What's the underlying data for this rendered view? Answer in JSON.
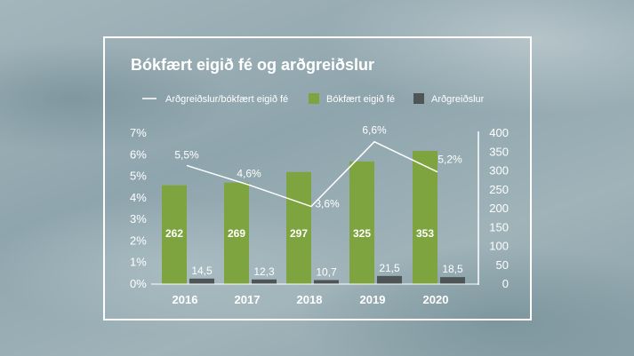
{
  "chart_data": {
    "type": "bar",
    "title": "Bókfært eigið fé og arðgreiðslur",
    "categories": [
      "2016",
      "2017",
      "2018",
      "2019",
      "2020"
    ],
    "series": [
      {
        "name": "Bókfært eigið fé",
        "axis": "right",
        "values": [
          262,
          269,
          297,
          325,
          353
        ],
        "labels": [
          "262",
          "269",
          "297",
          "325",
          "353"
        ],
        "color": "#7ea440"
      },
      {
        "name": "Arðgreiðslur",
        "axis": "right",
        "values": [
          14.5,
          12.3,
          10.7,
          21.5,
          18.5
        ],
        "labels": [
          "14,5",
          "12,3",
          "10,7",
          "21,5",
          "18,5"
        ],
        "color": "#4e5556"
      },
      {
        "name": "Arðgreiðslur/bókfært eigið fé",
        "type": "line",
        "axis": "left",
        "values": [
          5.5,
          4.6,
          3.6,
          6.6,
          5.2
        ],
        "labels": [
          "5,5%",
          "4,6%",
          "3,6%",
          "6,6%",
          "5,2%"
        ],
        "color": "#ffffff"
      }
    ],
    "left_axis": {
      "ylim": [
        0,
        7
      ],
      "ticks": [
        "0%",
        "1%",
        "2%",
        "3%",
        "4%",
        "5%",
        "6%",
        "7%"
      ]
    },
    "right_axis": {
      "ylim": [
        0,
        400
      ],
      "ticks": [
        "0",
        "50",
        "100",
        "150",
        "200",
        "250",
        "300",
        "350",
        "400"
      ]
    },
    "legend_position": "top",
    "grid": false
  }
}
